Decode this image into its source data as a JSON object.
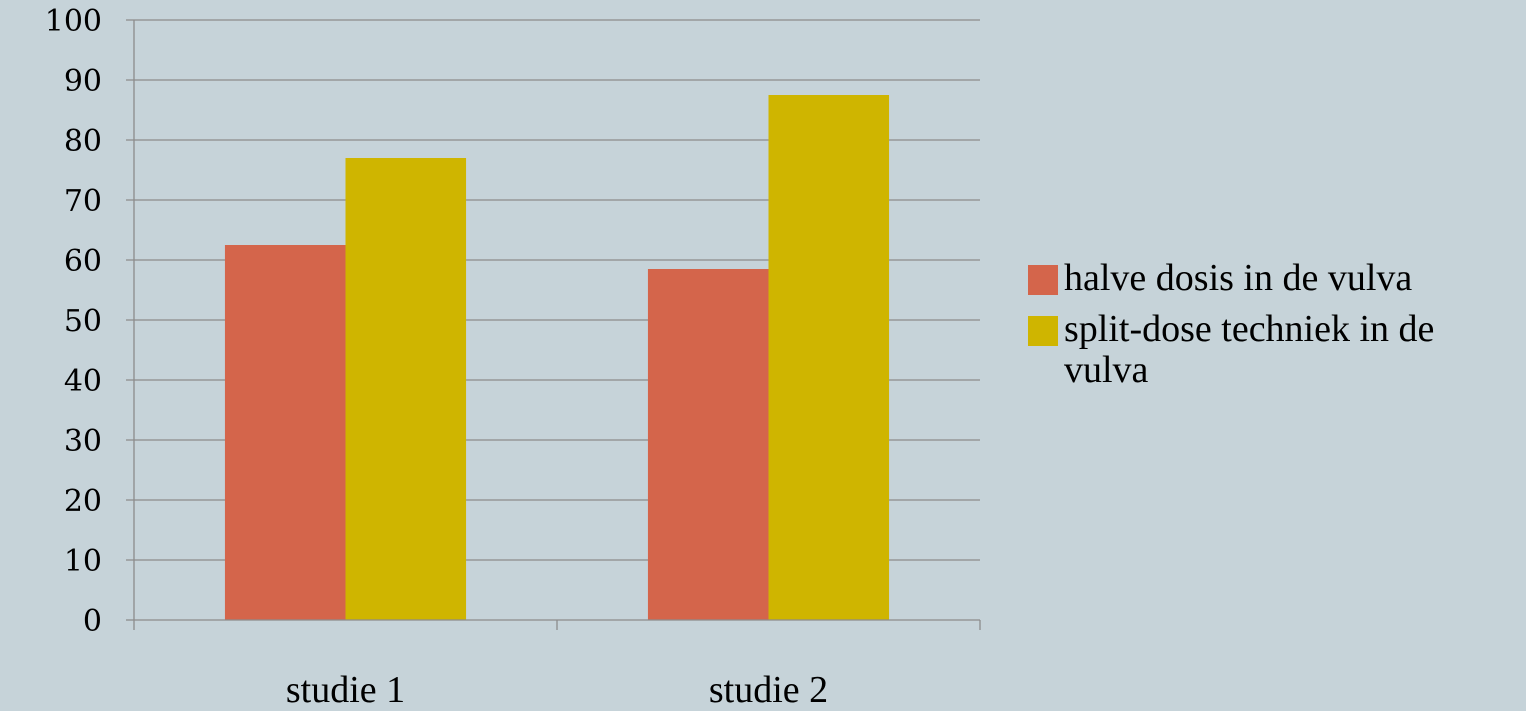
{
  "chart_data": {
    "type": "bar",
    "categories": [
      "studie 1",
      "studie 2"
    ],
    "series": [
      {
        "name": "halve dosis in de vulva",
        "values": [
          62.5,
          58.5
        ],
        "color": "#d4654b"
      },
      {
        "name": "split-dose techniek in de vulva",
        "values": [
          77,
          87.5
        ],
        "color": "#cfb500"
      }
    ],
    "y_ticks": [
      "0",
      "10",
      "20",
      "30",
      "40",
      "50",
      "60",
      "70",
      "80",
      "90",
      "100"
    ],
    "ylim": [
      0,
      100
    ],
    "grid": true,
    "legend_position": "right",
    "title": "",
    "xlabel": "",
    "ylabel": ""
  }
}
